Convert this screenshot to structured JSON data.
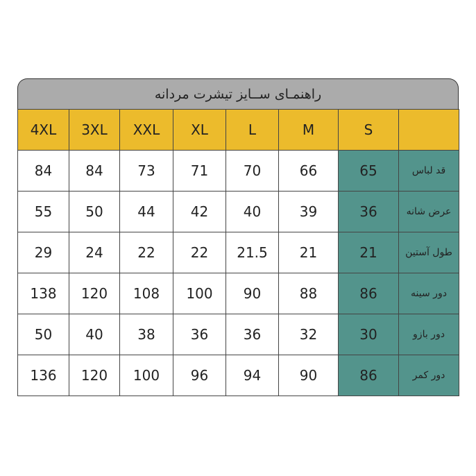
{
  "title": "راهنمـای ســایز تیشرت مردانه",
  "sizes": [
    "S",
    "M",
    "L",
    "XL",
    "XXL",
    "3XL",
    "4XL"
  ],
  "rows": [
    {
      "label": "قد لباس",
      "values": [
        "65",
        "66",
        "70",
        "71",
        "73",
        "84",
        "84"
      ]
    },
    {
      "label": "عرض شانه",
      "values": [
        "36",
        "39",
        "40",
        "42",
        "44",
        "50",
        "55"
      ]
    },
    {
      "label": "طول آستین",
      "values": [
        "21",
        "21",
        "21.5",
        "22",
        "22",
        "24",
        "29"
      ]
    },
    {
      "label": "دور سینه",
      "values": [
        "86",
        "88",
        "90",
        "100",
        "108",
        "120",
        "138"
      ]
    },
    {
      "label": "دور بازو",
      "values": [
        "30",
        "32",
        "36",
        "36",
        "38",
        "40",
        "50"
      ]
    },
    {
      "label": "دور کمر",
      "values": [
        "86",
        "90",
        "94",
        "96",
        "100",
        "120",
        "136"
      ]
    }
  ],
  "colors": {
    "title_bg": "#ababab",
    "header_bg": "#ecbb2c",
    "highlight_bg": "#53948c"
  }
}
